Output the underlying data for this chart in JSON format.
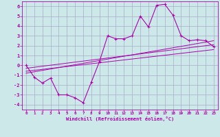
{
  "xlabel": "Windchill (Refroidissement éolien,°C)",
  "background_color": "#cce8e8",
  "grid_color": "#aaaacc",
  "line_color": "#aa00aa",
  "xlim": [
    -0.5,
    23.5
  ],
  "ylim": [
    -4.5,
    6.5
  ],
  "xticks": [
    0,
    1,
    2,
    3,
    4,
    5,
    6,
    7,
    8,
    9,
    10,
    11,
    12,
    13,
    14,
    15,
    16,
    17,
    18,
    19,
    20,
    21,
    22,
    23
  ],
  "yticks": [
    -4,
    -3,
    -2,
    -1,
    0,
    1,
    2,
    3,
    4,
    5,
    6
  ],
  "data_line": {
    "x": [
      0,
      1,
      2,
      3,
      4,
      5,
      6,
      7,
      8,
      9,
      10,
      11,
      12,
      13,
      14,
      15,
      16,
      17,
      18,
      19,
      20,
      21,
      22,
      23
    ],
    "y": [
      0,
      -1.2,
      -1.8,
      -1.3,
      -3.0,
      -3.0,
      -3.3,
      -3.8,
      -1.7,
      0.4,
      3.0,
      2.7,
      2.7,
      3.0,
      5.0,
      3.9,
      6.1,
      6.2,
      5.1,
      3.0,
      2.5,
      2.6,
      2.5,
      1.9
    ]
  },
  "reg_line1": {
    "x": [
      0,
      23
    ],
    "y": [
      -0.3,
      2.1
    ]
  },
  "reg_line2": {
    "x": [
      0,
      23
    ],
    "y": [
      -0.6,
      1.6
    ]
  },
  "reg_line3": {
    "x": [
      0,
      23
    ],
    "y": [
      -0.8,
      2.5
    ]
  }
}
